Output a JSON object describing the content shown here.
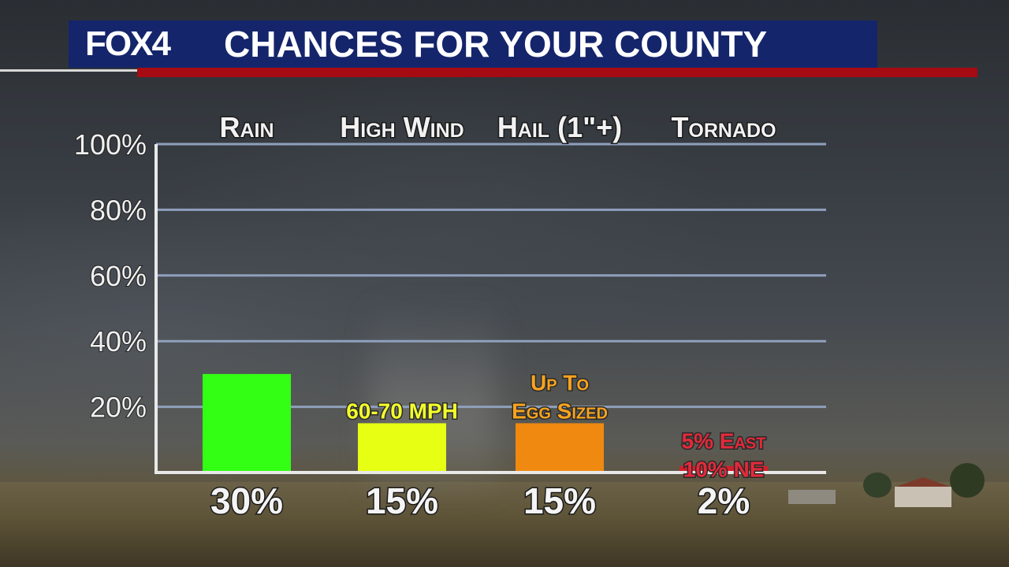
{
  "header": {
    "logo": "FOX4",
    "title": "CHANCES FOR YOUR COUNTY"
  },
  "colors": {
    "header_blue": "#15256b",
    "header_red": "#a60a12",
    "gridline": "#8fa0bc"
  },
  "chart_data": {
    "type": "bar",
    "title": "CHANCES FOR YOUR COUNTY",
    "categories": [
      "Rain",
      "High Wind",
      "Hail (1\"+)",
      "Tornado"
    ],
    "values": [
      30,
      15,
      15,
      2
    ],
    "value_labels": [
      "30%",
      "15%",
      "15%",
      "2%"
    ],
    "bar_colors": [
      "#33ff14",
      "#e6ff12",
      "#f0890f",
      "#d41f2c"
    ],
    "annotations": [
      [],
      [
        "60-70 MPH"
      ],
      [
        "Up To",
        "Egg Sized"
      ],
      [
        "5% East",
        "10% NE"
      ]
    ],
    "annotation_colors": [
      "",
      "#f3ff2a",
      "#f7a31e",
      "#e32a3a"
    ],
    "yticks": [
      "20%",
      "40%",
      "60%",
      "80%",
      "100%"
    ],
    "ytick_values": [
      20,
      40,
      60,
      80,
      100
    ],
    "ylim": [
      0,
      100
    ],
    "grid": true
  }
}
